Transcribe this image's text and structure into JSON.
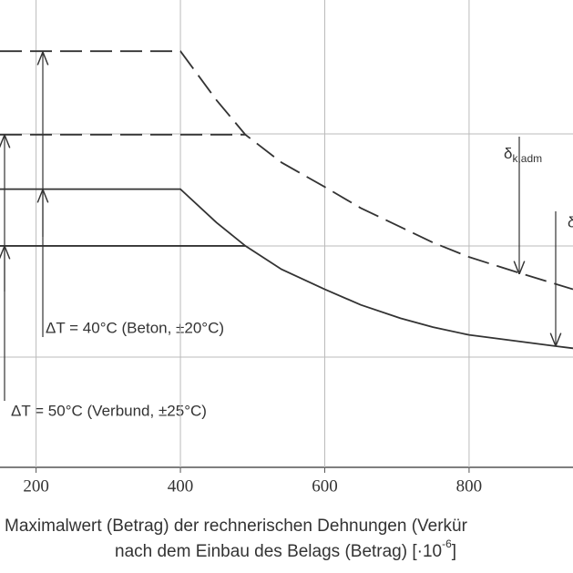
{
  "chart_data": {
    "type": "line",
    "xlabel": [
      "Maximalwert (Betrag) der rechnerischen Dehnungen (Verkür",
      "nach dem Einbau des Belags (Betrag) [·10",
      "-6",
      "]"
    ],
    "xlim": [
      150,
      944
    ],
    "ylim": [
      0,
      4.2
    ],
    "xticks": [
      200,
      400,
      600,
      800
    ],
    "grid": true,
    "series": [
      {
        "color": "#333333",
        "dash": true,
        "x": [
          150,
          400,
          450,
          490,
          540,
          600,
          650,
          705,
          750,
          800,
          868,
          944
        ],
        "values": [
          3.74,
          3.74,
          3.3,
          2.99,
          2.74,
          2.52,
          2.33,
          2.16,
          2.02,
          1.89,
          1.75,
          1.6
        ]
      },
      {
        "color": "#333333",
        "dash": true,
        "x": [
          150,
          490
        ],
        "values": [
          2.99,
          2.99
        ]
      },
      {
        "color": "#333333",
        "dash": false,
        "x": [
          150,
          400,
          450,
          490,
          540,
          600,
          650,
          705,
          750,
          800,
          919,
          944
        ],
        "values": [
          2.5,
          2.5,
          2.2,
          1.99,
          1.78,
          1.6,
          1.46,
          1.34,
          1.26,
          1.19,
          1.09,
          1.07
        ]
      },
      {
        "color": "#333333",
        "dash": false,
        "x": [
          150,
          490
        ],
        "values": [
          1.99,
          1.99
        ]
      }
    ],
    "annotations": [
      "ΔT = 40°C (Beton, ±20°C)",
      "ΔT = 50°C (Verbund, ±25°C)",
      "δ",
      "k,adm",
      "δ"
    ]
  }
}
